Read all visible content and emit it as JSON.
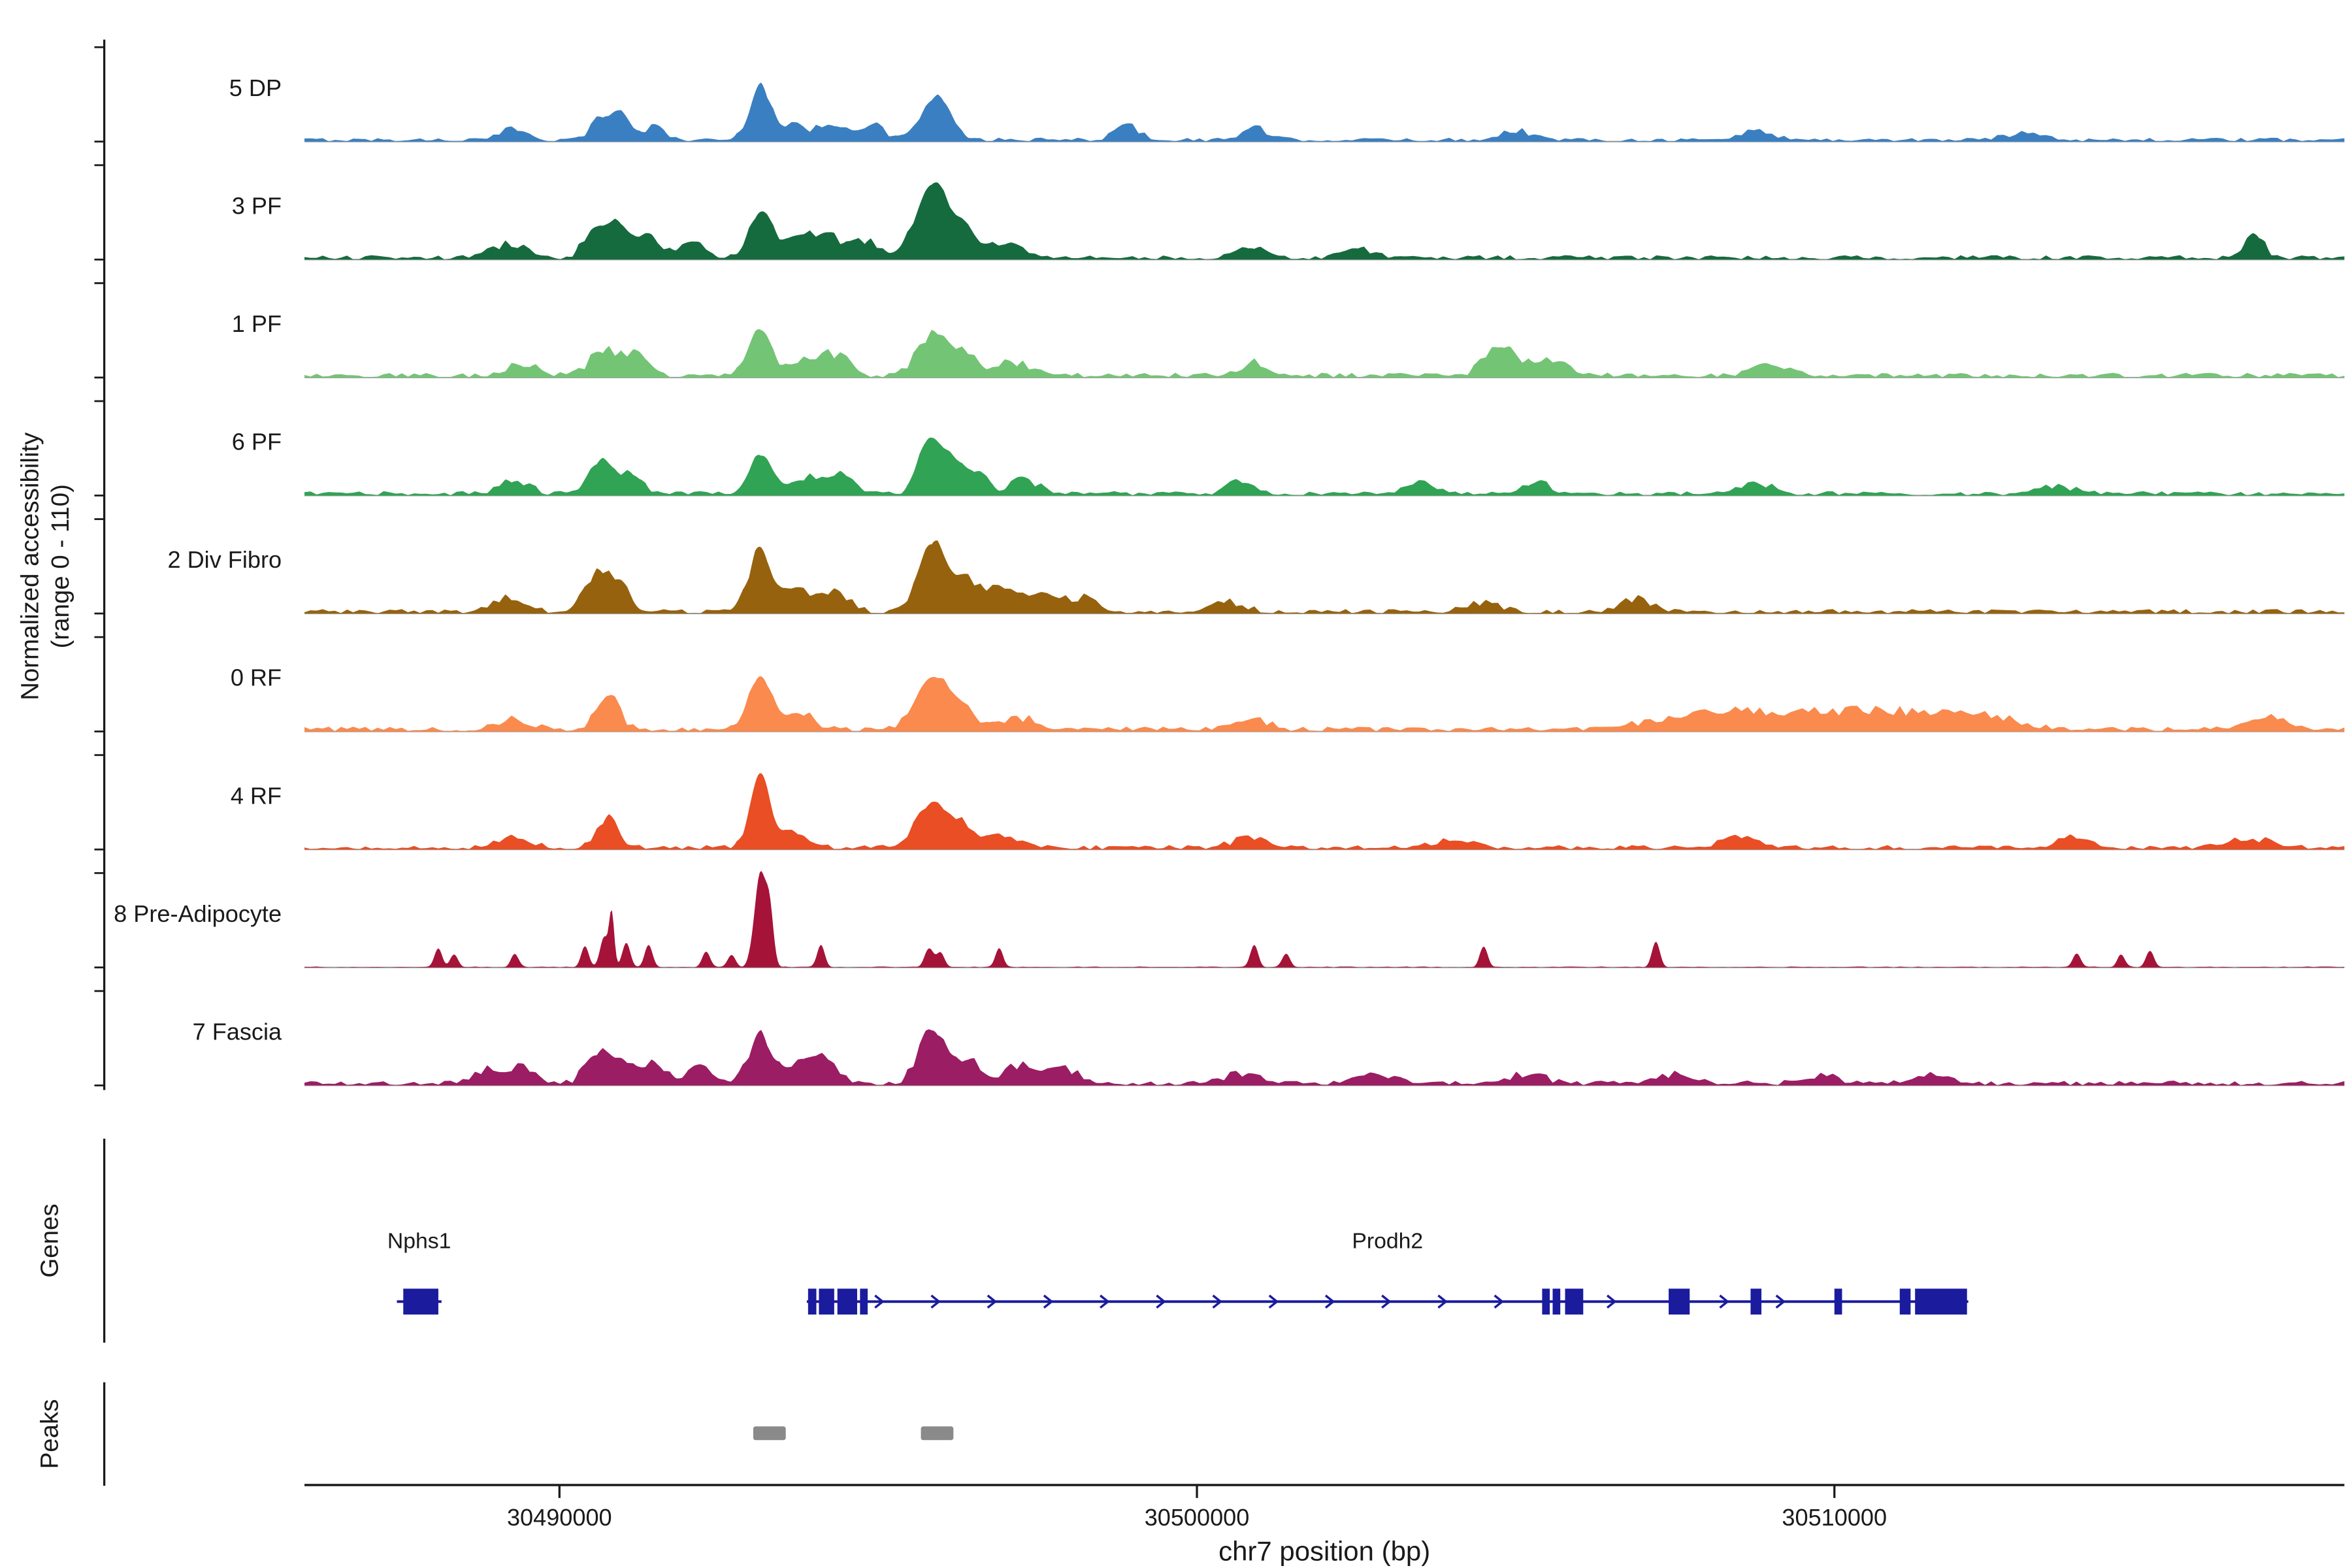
{
  "figure": {
    "ylabel_line1": "Normalized accessibility",
    "ylabel_line2": "(range 0 - 110)",
    "xlabel": "chr7 position (bp)",
    "genes_section_label": "Genes",
    "peaks_section_label": "Peaks"
  },
  "chart_data": {
    "type": "area",
    "title": "",
    "xlabel": "chr7 position (bp)",
    "ylabel": "Normalized accessibility (range 0 - 110)",
    "x_axis": {
      "start": 30486000,
      "end": 30518000,
      "ticks": [
        30490000,
        30500000,
        30510000
      ]
    },
    "y_axis": {
      "range": [
        0,
        110
      ]
    },
    "gene_color": "#1b1b9e",
    "peak_color": "#8a8a8a",
    "baseline_color": "#9b9b9b",
    "tracks": [
      {
        "label": "5 DP",
        "color": "#3a7fc1",
        "noise": 4,
        "peaks": [
          [
            30489300,
            11,
            200
          ],
          [
            30490700,
            24,
            180
          ],
          [
            30491000,
            20,
            150
          ],
          [
            30491500,
            13,
            150
          ],
          [
            30493150,
            60,
            160
          ],
          [
            30493650,
            13,
            200
          ],
          [
            30494300,
            16,
            250
          ],
          [
            30494900,
            13,
            200
          ],
          [
            30495800,
            33,
            180
          ],
          [
            30496050,
            27,
            150
          ],
          [
            30498900,
            13,
            200
          ],
          [
            30500900,
            11,
            200
          ],
          [
            30505000,
            9,
            250
          ],
          [
            30508800,
            9,
            250
          ],
          [
            30513000,
            7,
            300
          ]
        ]
      },
      {
        "label": "3 PF",
        "color": "#166b3e",
        "noise": 4.5,
        "peaks": [
          [
            30489200,
            13,
            250
          ],
          [
            30490600,
            35,
            180
          ],
          [
            30490950,
            30,
            150
          ],
          [
            30491400,
            24,
            180
          ],
          [
            30492100,
            13,
            200
          ],
          [
            30493150,
            46,
            170
          ],
          [
            30493700,
            20,
            250
          ],
          [
            30494200,
            24,
            200
          ],
          [
            30494800,
            16,
            200
          ],
          [
            30495850,
            79,
            250
          ],
          [
            30496350,
            27,
            200
          ],
          [
            30497000,
            13,
            250
          ],
          [
            30500800,
            11,
            200
          ],
          [
            30502500,
            9,
            250
          ],
          [
            30516600,
            20,
            150
          ]
        ]
      },
      {
        "label": "1 PF",
        "color": "#74c476",
        "noise": 5,
        "peaks": [
          [
            30489400,
            11,
            250
          ],
          [
            30490700,
            27,
            200
          ],
          [
            30491200,
            20,
            180
          ],
          [
            30493150,
            46,
            170
          ],
          [
            30493800,
            16,
            220
          ],
          [
            30494300,
            20,
            220
          ],
          [
            30495850,
            42,
            220
          ],
          [
            30496300,
            22,
            200
          ],
          [
            30497100,
            13,
            250
          ],
          [
            30500900,
            11,
            250
          ],
          [
            30504800,
            31,
            250
          ],
          [
            30505600,
            13,
            250
          ],
          [
            30509000,
            9,
            300
          ]
        ]
      },
      {
        "label": "6 PF",
        "color": "#31a354",
        "noise": 4.5,
        "peaks": [
          [
            30489300,
            13,
            220
          ],
          [
            30490650,
            35,
            180
          ],
          [
            30491100,
            22,
            160
          ],
          [
            30493150,
            44,
            170
          ],
          [
            30493900,
            16,
            200
          ],
          [
            30494400,
            20,
            200
          ],
          [
            30495800,
            57,
            160
          ],
          [
            30496100,
            33,
            160
          ],
          [
            30496500,
            24,
            180
          ],
          [
            30497300,
            13,
            220
          ],
          [
            30500700,
            11,
            220
          ],
          [
            30503500,
            9,
            250
          ],
          [
            30505300,
            11,
            220
          ],
          [
            30508800,
            9,
            250
          ],
          [
            30513500,
            7,
            250
          ]
        ]
      },
      {
        "label": "2 Div Fibro",
        "color": "#97620e",
        "noise": 4.5,
        "peaks": [
          [
            30489200,
            13,
            250
          ],
          [
            30490600,
            42,
            180
          ],
          [
            30490950,
            27,
            150
          ],
          [
            30493150,
            68,
            170
          ],
          [
            30493700,
            22,
            220
          ],
          [
            30494300,
            20,
            220
          ],
          [
            30495850,
            75,
            200
          ],
          [
            30496350,
            33,
            200
          ],
          [
            30496900,
            22,
            250
          ],
          [
            30497500,
            16,
            250
          ],
          [
            30498200,
            13,
            250
          ],
          [
            30500500,
            9,
            250
          ],
          [
            30504500,
            9,
            250
          ],
          [
            30506900,
            11,
            250
          ]
        ]
      },
      {
        "label": "0 RF",
        "color": "#fa8a4d",
        "noise": 5,
        "peaks": [
          [
            30489300,
            9,
            250
          ],
          [
            30490750,
            38,
            170
          ],
          [
            30493150,
            60,
            170
          ],
          [
            30493800,
            13,
            220
          ],
          [
            30495850,
            53,
            250
          ],
          [
            30496300,
            22,
            220
          ],
          [
            30497200,
            11,
            250
          ],
          [
            30500900,
            9,
            250
          ],
          [
            30508000,
            13,
            800
          ],
          [
            30509500,
            14,
            800
          ],
          [
            30511000,
            15,
            700
          ],
          [
            30512300,
            13,
            500
          ],
          [
            30516800,
            13,
            300
          ]
        ]
      },
      {
        "label": "4 RF",
        "color": "#e94e25",
        "noise": 4.5,
        "peaks": [
          [
            30489300,
            9,
            250
          ],
          [
            30490750,
            31,
            160
          ],
          [
            30493150,
            82,
            150
          ],
          [
            30493700,
            16,
            220
          ],
          [
            30495850,
            46,
            250
          ],
          [
            30496300,
            20,
            220
          ],
          [
            30497000,
            11,
            250
          ],
          [
            30500800,
            9,
            250
          ],
          [
            30504000,
            7,
            300
          ],
          [
            30508500,
            9,
            300
          ],
          [
            30513800,
            11,
            250
          ],
          [
            30516500,
            9,
            300
          ]
        ]
      },
      {
        "label": "8 Pre-Adipocyte",
        "color": "#a61338",
        "noise": 1,
        "peaks": [
          [
            30488100,
            20,
            60
          ],
          [
            30488350,
            13,
            60
          ],
          [
            30489300,
            15,
            60
          ],
          [
            30490400,
            24,
            60
          ],
          [
            30490700,
            33,
            60
          ],
          [
            30490820,
            60,
            40
          ],
          [
            30491050,
            27,
            60
          ],
          [
            30491400,
            24,
            60
          ],
          [
            30492300,
            16,
            60
          ],
          [
            30492700,
            13,
            60
          ],
          [
            30493150,
            104,
            90
          ],
          [
            30493300,
            55,
            60
          ],
          [
            30494100,
            24,
            60
          ],
          [
            30495800,
            20,
            70
          ],
          [
            30495980,
            16,
            60
          ],
          [
            30496900,
            20,
            60
          ],
          [
            30500900,
            24,
            60
          ],
          [
            30501400,
            15,
            60
          ],
          [
            30504500,
            22,
            60
          ],
          [
            30507200,
            27,
            60
          ],
          [
            30513800,
            15,
            60
          ],
          [
            30514500,
            13,
            60
          ],
          [
            30514950,
            18,
            60
          ]
        ]
      },
      {
        "label": "7 Fascia",
        "color": "#9b1d64",
        "noise": 5,
        "peaks": [
          [
            30488900,
            11,
            250
          ],
          [
            30489400,
            15,
            220
          ],
          [
            30490600,
            31,
            180
          ],
          [
            30491000,
            24,
            160
          ],
          [
            30491500,
            20,
            180
          ],
          [
            30492200,
            13,
            220
          ],
          [
            30493150,
            53,
            170
          ],
          [
            30493800,
            24,
            220
          ],
          [
            30494200,
            20,
            200
          ],
          [
            30495850,
            60,
            200
          ],
          [
            30496400,
            24,
            200
          ],
          [
            30497200,
            16,
            250
          ],
          [
            30497900,
            13,
            250
          ],
          [
            30500700,
            9,
            250
          ],
          [
            30502800,
            11,
            250
          ],
          [
            30505200,
            9,
            250
          ],
          [
            30507500,
            9,
            250
          ],
          [
            30509800,
            8,
            250
          ],
          [
            30511500,
            7,
            250
          ]
        ]
      }
    ],
    "genes": [
      {
        "name": "Nphs1",
        "start": 30487450,
        "end": 30488150,
        "strand": "",
        "exons": [
          [
            30487550,
            30488100
          ]
        ]
      },
      {
        "name": "Prodh2",
        "start": 30493880,
        "end": 30512100,
        "strand": "+",
        "exons": [
          [
            30493900,
            30494030
          ],
          [
            30494070,
            30494310
          ],
          [
            30494360,
            30494670
          ],
          [
            30494715,
            30494835
          ],
          [
            30505415,
            30505535
          ],
          [
            30505580,
            30505700
          ],
          [
            30505775,
            30506060
          ],
          [
            30507400,
            30507730
          ],
          [
            30508685,
            30508855
          ],
          [
            30510000,
            30510120
          ],
          [
            30511025,
            30511195
          ],
          [
            30511265,
            30512080
          ]
        ]
      }
    ],
    "peaks": [
      [
        30493040,
        30493550
      ],
      [
        30495670,
        30496180
      ]
    ]
  }
}
